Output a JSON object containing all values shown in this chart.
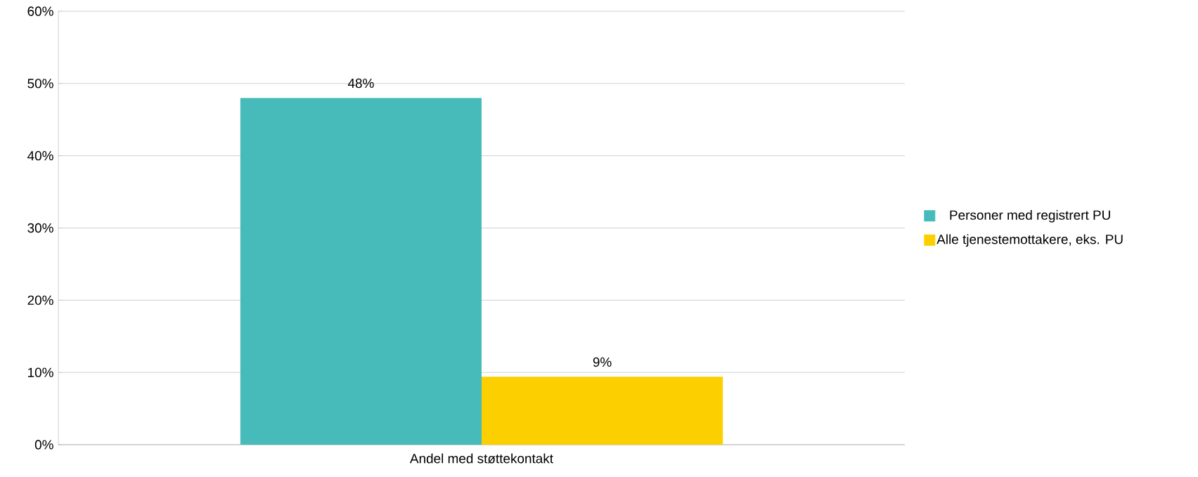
{
  "chart_data": {
    "type": "bar",
    "categories": [
      "Andel med støttekontakt"
    ],
    "series": [
      {
        "name": "Personer med registrert PU",
        "color": "#46bbb9",
        "values": [
          48
        ],
        "value_labels": [
          "48%"
        ]
      },
      {
        "name": "Alle tjenestemottakere, eks. PU",
        "color": "#fccf00",
        "values": [
          9.4
        ],
        "value_labels": [
          "9%"
        ]
      }
    ],
    "ylim": [
      0,
      60
    ],
    "yticks": [
      {
        "value": 0,
        "label": "0%"
      },
      {
        "value": 10,
        "label": "10%"
      },
      {
        "value": 20,
        "label": "20%"
      },
      {
        "value": 30,
        "label": "30%"
      },
      {
        "value": 40,
        "label": "40%"
      },
      {
        "value": 50,
        "label": "50%"
      },
      {
        "value": 60,
        "label": "60%"
      }
    ],
    "grid": "y",
    "legend": "right"
  }
}
